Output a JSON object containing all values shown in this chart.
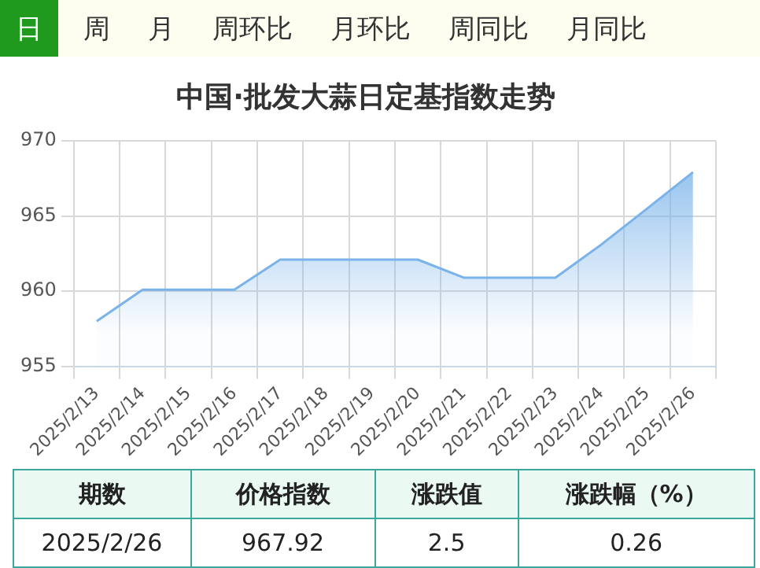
{
  "chart_data": {
    "type": "area",
    "title": "中国·批发大蒜日定基指数走势",
    "categories": [
      "2025/2/13",
      "2025/2/14",
      "2025/2/15",
      "2025/2/16",
      "2025/2/17",
      "2025/2/18",
      "2025/2/19",
      "2025/2/20",
      "2025/2/21",
      "2025/2/22",
      "2025/2/23",
      "2025/2/24",
      "2025/2/25",
      "2025/2/26"
    ],
    "values": [
      958,
      960.1,
      960.1,
      960.1,
      962.1,
      962.1,
      962.1,
      962.1,
      960.9,
      960.9,
      960.9,
      963.1,
      965.5,
      967.92
    ],
    "color": "#7ab3ea",
    "ylim": [
      955,
      970
    ],
    "yticks": [
      955,
      960,
      965,
      970
    ],
    "grid": true,
    "legend": false,
    "marker": "none",
    "annotations": [
      "日",
      "周",
      "月",
      "周环比",
      "月环比",
      "周同比",
      "月同比",
      "期数",
      "价格指数",
      "涨跌值",
      "涨跌幅（%）",
      "2025/2/26",
      "967.92",
      "2.5",
      "0.26"
    ]
  }
}
